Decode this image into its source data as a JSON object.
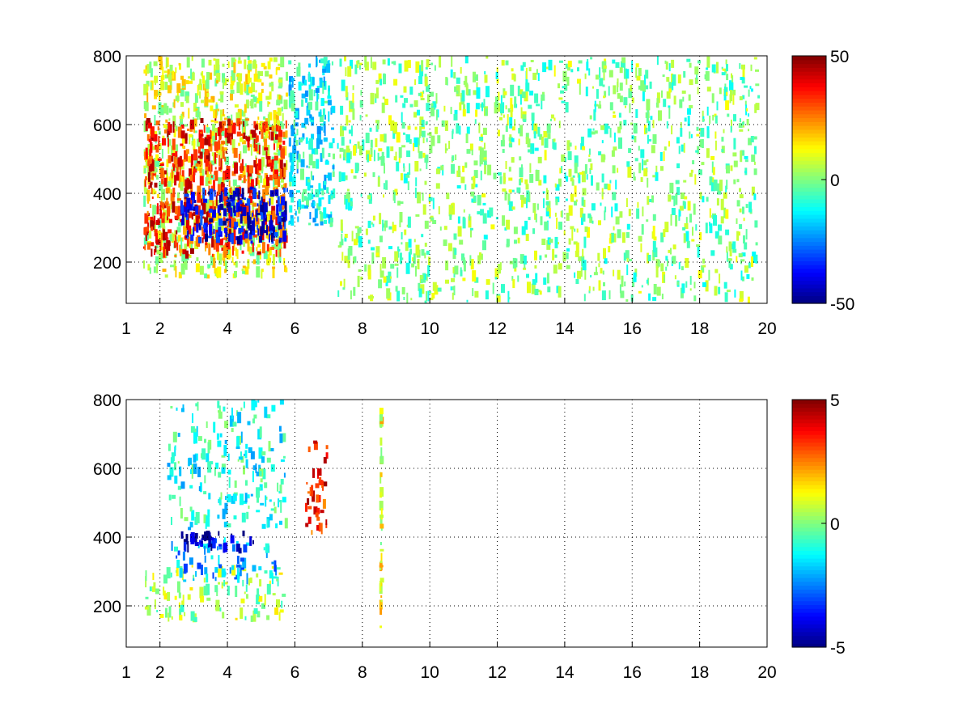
{
  "chart_data": [
    {
      "type": "heatmap",
      "title": "",
      "xlabel": "",
      "ylabel": "",
      "xlim": [
        1,
        20
      ],
      "ylim": [
        80,
        800
      ],
      "xticks": [
        1,
        2,
        4,
        6,
        8,
        10,
        12,
        14,
        16,
        18,
        20
      ],
      "yticks": [
        200,
        400,
        600,
        800
      ],
      "grid": true,
      "colormap": "jet",
      "colorbar": {
        "range": [
          -50,
          50
        ],
        "ticks": [
          -50,
          0,
          50
        ]
      },
      "features": [
        {
          "description": "dense noisy field",
          "x": [
            1.5,
            5.8
          ],
          "y": [
            150,
            800
          ],
          "value": 8
        },
        {
          "description": "positive ridge",
          "x": [
            1.5,
            5.8
          ],
          "y": [
            210,
            620
          ],
          "value": 35
        },
        {
          "description": "negative ridge",
          "x": [
            2.6,
            5.8
          ],
          "y": [
            250,
            420
          ],
          "value": -40
        },
        {
          "description": "moderate cluster",
          "x": [
            5.8,
            7.2
          ],
          "y": [
            300,
            800
          ],
          "value": -12
        },
        {
          "description": "sparse columns",
          "x": [
            7.2,
            19.8
          ],
          "y": [
            80,
            800
          ],
          "value": 0
        }
      ]
    },
    {
      "type": "heatmap",
      "title": "",
      "xlabel": "",
      "ylabel": "",
      "xlim": [
        1,
        20
      ],
      "ylim": [
        80,
        800
      ],
      "xticks": [
        1,
        2,
        4,
        6,
        8,
        10,
        12,
        14,
        16,
        18,
        20
      ],
      "yticks": [
        200,
        400,
        600,
        800
      ],
      "grid": true,
      "colormap": "jet",
      "colorbar": {
        "range": [
          -5,
          5
        ],
        "ticks": [
          -5,
          0,
          5
        ]
      },
      "features": [
        {
          "description": "lower band",
          "x": [
            1.5,
            5.8
          ],
          "y": [
            150,
            320
          ],
          "value": 0.3
        },
        {
          "description": "mid band",
          "x": [
            2.3,
            5.5
          ],
          "y": [
            260,
            400
          ],
          "value": -2
        },
        {
          "description": "negative cluster",
          "x": [
            2.6,
            4.8
          ],
          "y": [
            350,
            420
          ],
          "value": -4.5
        },
        {
          "description": "upper scatter",
          "x": [
            2.2,
            5.8
          ],
          "y": [
            420,
            800
          ],
          "value": -1
        },
        {
          "description": "positive patch",
          "x": [
            6.3,
            7.0
          ],
          "y": [
            400,
            700
          ],
          "value": 3.5
        },
        {
          "description": "single column",
          "x": [
            8.5,
            8.6
          ],
          "y": [
            130,
            780
          ],
          "value": 1
        }
      ]
    }
  ]
}
